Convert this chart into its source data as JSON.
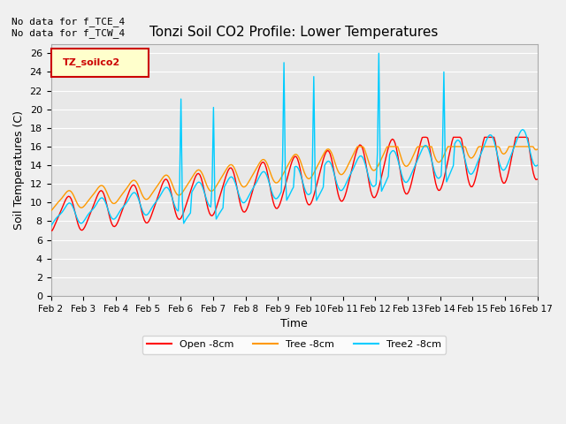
{
  "title": "Tonzi Soil CO2 Profile: Lower Temperatures",
  "xlabel": "Time",
  "ylabel": "Soil Temperatures (C)",
  "top_left_text": "No data for f_TCE_4\nNo data for f_TCW_4",
  "legend_box_label": "TZ_soilco2",
  "ylim": [
    0,
    27
  ],
  "yticks": [
    0,
    2,
    4,
    6,
    8,
    10,
    12,
    14,
    16,
    18,
    20,
    22,
    24,
    26
  ],
  "xtick_labels": [
    "Feb 2",
    "Feb 3",
    "Feb 4",
    "Feb 5",
    "Feb 6",
    "Feb 7",
    "Feb 8",
    "Feb 9",
    "Feb 10",
    "Feb 11",
    "Feb 12",
    "Feb 13",
    "Feb 14",
    "Feb 15",
    "Feb 16",
    "Feb 17"
  ],
  "bg_color": "#e8e8e8",
  "series_colors": [
    "#ff0000",
    "#ff9900",
    "#00ccff"
  ],
  "series_labels": [
    "Open -8cm",
    "Tree -8cm",
    "Tree2 -8cm"
  ]
}
